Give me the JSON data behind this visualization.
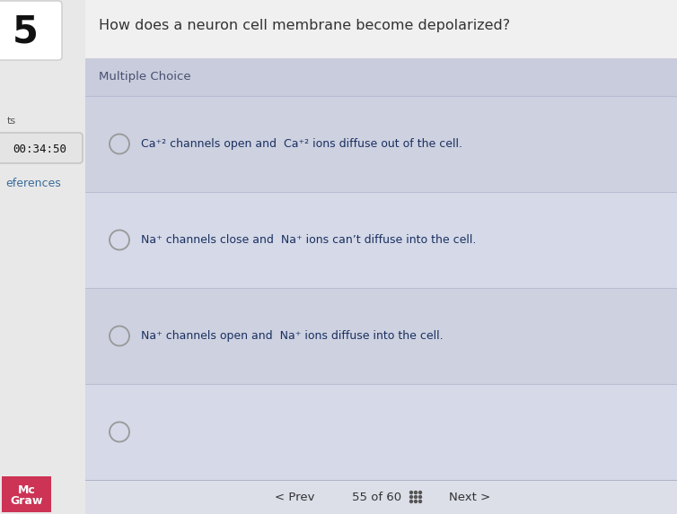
{
  "title": "How does a neuron cell membrane become depolarized?",
  "question_number": "5",
  "section_label": "Multiple Choice",
  "timer": "00:34:50",
  "left_label": "ts",
  "references_label": "eferences",
  "nav_prev": "< Prev",
  "nav_counter": "55 of 60",
  "nav_next": "Next >",
  "brand_line1": "Mc",
  "brand_line2": "Graw",
  "choices": [
    "Ca⁺² channels open and  Ca⁺² ions diffuse out of the cell.",
    "Na⁺ channels close and  Na⁺ ions can’t diffuse into the cell.",
    "Na⁺ channels open and  Na⁺ ions diffuse into the cell.",
    ""
  ],
  "bg_outer": "#e8e8e8",
  "bg_top": "#eaeaea",
  "bg_inner": "#ccd0df",
  "bg_choice_light": "#d4d8e8",
  "bg_choice_dark": "#c8ccdc",
  "timer_bg": "#e4e4e4",
  "timer_border": "#c0c0c0",
  "title_color": "#333333",
  "choice_text_color": "#1a3060",
  "section_color": "#4a5070",
  "nav_color": "#333333",
  "brand_bg": "#cc3355",
  "brand_text": "#ffffff",
  "circle_color": "#999999",
  "left_panel_bg": "#e8e8e8",
  "num_box_bg": "#ffffff",
  "num_box_border": "#cccccc"
}
